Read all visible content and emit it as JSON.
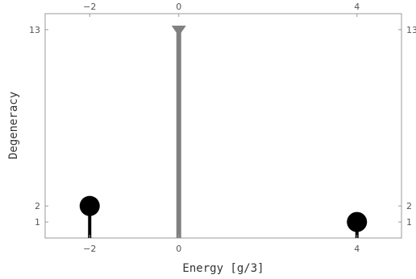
{
  "chart_data": {
    "type": "stem",
    "title": "",
    "xlabel": "Energy [g/3]",
    "ylabel": "Degeneracy",
    "xlim": [
      -3.0,
      5.0
    ],
    "ylim": [
      0.0,
      14.0
    ],
    "x_ticks": [
      -2,
      0,
      4
    ],
    "x_tick_labels": [
      "−2",
      "0",
      "4"
    ],
    "y_ticks": [
      1,
      2,
      13
    ],
    "y_tick_labels": [
      "1",
      "2",
      "13"
    ],
    "grid": false,
    "legend": "none",
    "series": [
      {
        "marker": "circle",
        "color": "#000000",
        "points": [
          {
            "x": -2,
            "y": 2
          },
          {
            "x": 4,
            "y": 1
          }
        ]
      },
      {
        "marker": "triangle-down",
        "color": "#808080",
        "points": [
          {
            "x": 0,
            "y": 13
          }
        ]
      }
    ]
  }
}
